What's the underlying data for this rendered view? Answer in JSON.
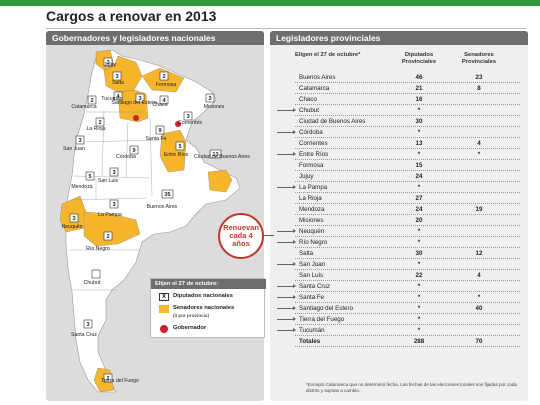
{
  "title": "Cargos a renovar en 2013",
  "left_header": "Gobernadores y legisladores nacionales",
  "right_header": "Legisladores provinciales",
  "map": {
    "provinces": [
      {
        "name": "Jujuy",
        "deputies": "3",
        "senators": true,
        "governor": false
      },
      {
        "name": "Salta",
        "deputies": "3",
        "senators": true,
        "governor": false
      },
      {
        "name": "Formosa",
        "deputies": "2",
        "senators": true,
        "governor": false
      },
      {
        "name": "Misiones",
        "deputies": "3",
        "senators": false,
        "governor": false
      },
      {
        "name": "Tucumán",
        "deputies": "4",
        "senators": false,
        "governor": false
      },
      {
        "name": "Catamarca",
        "deputies": "2",
        "senators": false,
        "governor": false
      },
      {
        "name": "Santiago del Estero",
        "deputies": "3",
        "senators": true,
        "governor": true
      },
      {
        "name": "Chaco",
        "deputies": "4",
        "senators": false,
        "governor": false
      },
      {
        "name": "Corrientes",
        "deputies": "3",
        "senators": false,
        "governor": true
      },
      {
        "name": "La Rioja",
        "deputies": "2",
        "senators": false,
        "governor": false
      },
      {
        "name": "San Juan",
        "deputies": "3",
        "senators": false,
        "governor": false
      },
      {
        "name": "Córdoba",
        "deputies": "9",
        "senators": false,
        "governor": false
      },
      {
        "name": "Santa Fe",
        "deputies": "9",
        "senators": false,
        "governor": false
      },
      {
        "name": "Entre Ríos",
        "deputies": "5",
        "senators": true,
        "governor": false
      },
      {
        "name": "Mendoza",
        "deputies": "5",
        "senators": false,
        "governor": false
      },
      {
        "name": "San Luis",
        "deputies": "3",
        "senators": false,
        "governor": false
      },
      {
        "name": "Ciudad de Buenos Aires",
        "deputies": "13",
        "senators": true,
        "governor": false
      },
      {
        "name": "La Pampa",
        "deputies": "3",
        "senators": false,
        "governor": false
      },
      {
        "name": "Buenos Aires",
        "deputies": "35",
        "senators": false,
        "governor": false
      },
      {
        "name": "Neuquén",
        "deputies": "3",
        "senators": true,
        "governor": false
      },
      {
        "name": "Río Negro",
        "deputies": "2",
        "senators": true,
        "governor": false
      },
      {
        "name": "Chubut",
        "deputies": "",
        "senators": false,
        "governor": false
      },
      {
        "name": "Santa Cruz",
        "deputies": "3",
        "senators": false,
        "governor": false
      },
      {
        "name": "Tierra del Fuego",
        "deputies": "2",
        "senators": true,
        "governor": false
      }
    ]
  },
  "renew_badge": "Renuevan cada 4 años",
  "legend": {
    "heading": "Elijen el 27 de octubre:",
    "items": [
      {
        "label": "Diputados nacionales",
        "symbol": "X",
        "sub": ""
      },
      {
        "label": "Senadores nacionales",
        "symbol": "",
        "sub": "(3 por provincia)"
      },
      {
        "label": "Gobernador",
        "symbol": "",
        "sub": ""
      }
    ]
  },
  "colors": {
    "senators": "#f7b52c",
    "governor": "#d0202a",
    "header": "#6e6e6e",
    "accent": "#2e9a3a",
    "land": "#ffffff"
  },
  "table": {
    "col_headers": [
      "Eligen el 27 de octubre*",
      "Diputados Provinciales",
      "Senadores Provinciales"
    ],
    "rows": [
      {
        "name": "Buenos Aires",
        "dip": "46",
        "sen": "23",
        "arrow": false
      },
      {
        "name": "Catamarca",
        "dip": "21",
        "sen": "8",
        "arrow": false
      },
      {
        "name": "Chaco",
        "dip": "16",
        "sen": "",
        "arrow": false
      },
      {
        "name": "Chubut",
        "dip": "*",
        "sen": "",
        "arrow": true
      },
      {
        "name": "Ciudad de Buenos Aires",
        "dip": "30",
        "sen": "",
        "arrow": false
      },
      {
        "name": "Córdoba",
        "dip": "*",
        "sen": "",
        "arrow": true
      },
      {
        "name": "Corrientes",
        "dip": "13",
        "sen": "4",
        "arrow": false
      },
      {
        "name": "Entre Ríos",
        "dip": "*",
        "sen": "*",
        "arrow": true
      },
      {
        "name": "Formosa",
        "dip": "15",
        "sen": "",
        "arrow": false
      },
      {
        "name": "Jujuy",
        "dip": "24",
        "sen": "",
        "arrow": false
      },
      {
        "name": "La Pampa",
        "dip": "*",
        "sen": "",
        "arrow": true
      },
      {
        "name": "La Rioja",
        "dip": "27",
        "sen": "",
        "arrow": false
      },
      {
        "name": "Mendoza",
        "dip": "24",
        "sen": "19",
        "arrow": false
      },
      {
        "name": "Misiones",
        "dip": "20",
        "sen": "",
        "arrow": false
      },
      {
        "name": "Neuquén",
        "dip": "*",
        "sen": "",
        "arrow": true
      },
      {
        "name": "Río Negro",
        "dip": "*",
        "sen": "",
        "arrow": true
      },
      {
        "name": "Salta",
        "dip": "30",
        "sen": "12",
        "arrow": false
      },
      {
        "name": "San Juan",
        "dip": "*",
        "sen": "",
        "arrow": true
      },
      {
        "name": "San Luis",
        "dip": "22",
        "sen": "4",
        "arrow": false
      },
      {
        "name": "Santa Cruz",
        "dip": "*",
        "sen": "",
        "arrow": true
      },
      {
        "name": "Santa Fe",
        "dip": "*",
        "sen": "*",
        "arrow": true
      },
      {
        "name": "Santiago del Estero",
        "dip": "*",
        "sen": "40",
        "arrow": true
      },
      {
        "name": "Tierra del Fuego",
        "dip": "*",
        "sen": "",
        "arrow": true
      },
      {
        "name": "Tucumán",
        "dip": "*",
        "sen": "",
        "arrow": true
      }
    ],
    "total": {
      "name": "Totales",
      "dip": "288",
      "sen": "70"
    }
  },
  "footnote": "*Excepto Catamarca que no determinó fecha. Las fechas de las elecciones locales son fijadas por cada distrito y sujetas a cambio."
}
